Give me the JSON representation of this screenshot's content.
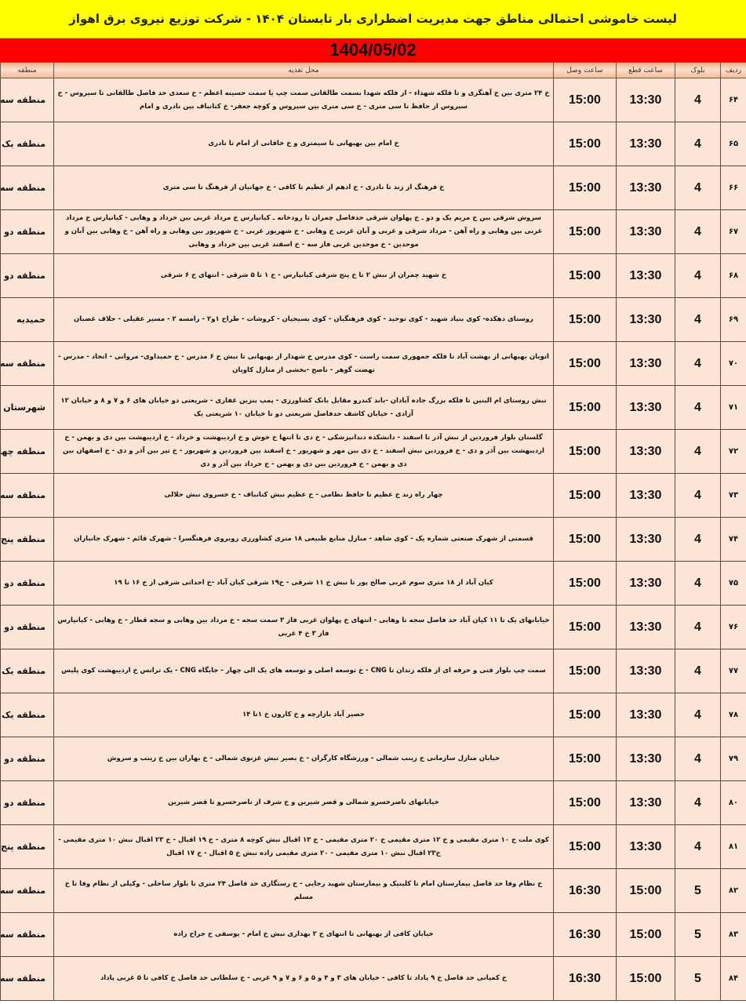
{
  "header": {
    "title": "لیست خاموشی احتمالی مناطق جهت مدیریت اضطراری بار تابستان ۱۴۰۴ - شرکت توزیع نیروی برق اهواز",
    "date": "1404/05/02"
  },
  "colors": {
    "title_bg": "#ffff00",
    "date_bg": "#ff0000",
    "row_bg": "#fce4d6"
  },
  "table": {
    "columns": {
      "radif": "ردیف",
      "block": "بلوک",
      "qat": "ساعت قطع",
      "wasl": "ساعت وصل",
      "addr": "محل تغذیه",
      "region": "منطقه"
    },
    "rows": [
      {
        "radif": "۶۴",
        "block": "4",
        "qat": "13:30",
        "wasl": "15:00",
        "region": "منطقه سه",
        "addr": "خ ۲۴ متری بین خ آهنگری و تا فلکه شهداء - از فلکه شهدا بسمت طالقانی سمت چپ  یا سمت حسینه اعظم - خ سعدی حد فاصل طالقانی تا سیروس - خ سیروس از حافظ تا سی متری - خ سی متری بین سیروس و کوچه جعفر- خ کتانباف بین نادری و امام"
      },
      {
        "radif": "۶۵",
        "block": "4",
        "qat": "13:30",
        "wasl": "15:00",
        "region": "منطقه یک",
        "addr": "خ امام بین بهبهانی تا سیمتری و خ خاقانی از امام تا نادری"
      },
      {
        "radif": "۶۶",
        "block": "4",
        "qat": "13:30",
        "wasl": "15:00",
        "region": "منطقه سه",
        "addr": "خ فرهنگ از زند تا نادری - خ ادهم از عظیم تا کافی - خ جهانیان از فرهنگ تا سی متری"
      },
      {
        "radif": "۶۷",
        "block": "4",
        "qat": "13:30",
        "wasl": "15:00",
        "region": "منطقه دو",
        "addr": "سروش شرقی بین خ مریم یک و دو  ـ خ پهلوان شرقی حدفاصل چمران تا رودخانه ـ کیانپارس خ مرداد غربی بین خرداد و وهابی -  کیانپارس خ مرداد غربی بین وهابی و راه آهن - مرداد شرقی و غربی و آبان غربی خ وهابی - خ شهریور غربی - خ شهریور بین وهابی و راه آهن - خ وهابی بین آبان و موحدین - خ موحدین غربی فاز سه - خ اسفند غربی بین خرداد و وهابی"
      },
      {
        "radif": "۶۸",
        "block": "4",
        "qat": "13:30",
        "wasl": "15:00",
        "region": "منطقه دو",
        "addr": "خ شهید چمران از نبش ۲  تا خ پنج شرقی کیانپارس - خ ۱ تا ۵ شرقی - انتهای خ ۶ شرقی"
      },
      {
        "radif": "۶۹",
        "block": "4",
        "qat": "13:30",
        "wasl": "15:00",
        "region": "حمیدیه",
        "addr": "روستای دهکده- کوی بنیاد شهید - کوی توحید - کوی فرهنگیان - کوی بسیجیان - کروشات - طراح ۱و۲ - رامسه ۲ - مسیر عقیلی - حلاف غضبان"
      },
      {
        "radif": "۷۰",
        "block": "4",
        "qat": "13:30",
        "wasl": "15:00",
        "region": "منطقه سه",
        "addr": "اتوبان بهبهانی از بهشت آباد تا فلکه جمهوری سمت راست - کوی مدرس خ شهدار از بهبهانی تا نبش خ ۶ مدرس - خ حمیداوی- مروانی - اتحاد - مدرس - نهضت گوهر - ناصح -بخشی از منازل کاویان"
      },
      {
        "radif": "۷۱",
        "block": "4",
        "qat": "13:30",
        "wasl": "15:00",
        "region": "شهرستان کارون",
        "addr": "نبش روستای ام البنین تا فلکه بزرگ جاده آبادان -باند کندرو مقابل بانک کشاورزی - پمپ بنزین غفاری - شریعتی دو خیابان های ۶ و ۷ و ۸ و خیابان ۱۲ آزادی - خیابان کاشف  حدفاصل شریعتی دو تا خیابان ۱۰ شریعتی یک"
      },
      {
        "radif": "۷۲",
        "block": "4",
        "qat": "13:30",
        "wasl": "15:00",
        "region": "منطقه چهار",
        "addr": "گلستان بلوار فروردین از نبش آذر تا اسفند - دانشکده دندانپزشکی - خ دی تا انتها خ خوش و خ اردیبهشت و خرداد - خ اردیبهشت بین دی و بهمن - خ اردیبهشت بین آذر و دی - خ فروردین نبش اسفند - خ دی بین مهر و شهریور - خ اسفند بین فروردین و شهریور - خ تیر بین آذر و دی - خ اصفهان بین دی و بهمن - خ فروردین بین دی و بهمن - خ خرداد بین آذر و دی"
      },
      {
        "radif": "۷۳",
        "block": "4",
        "qat": "13:30",
        "wasl": "15:00",
        "region": "منطقه سه",
        "addr": "چهار راه زند خ عظیم تا حافظ نظامی  - خ عظیم نبش کتانباف - خ خسروی نبش حلالی"
      },
      {
        "radif": "۷۴",
        "block": "4",
        "qat": "13:30",
        "wasl": "15:00",
        "region": "منطقه پنج",
        "addr": "قسمتی از شهرک صنعتی شماره یک - کوی شاهد - منازل منابع طبیعی ۱۸ متری کشاورزی روبروی فرهنگسرا - شهرک قائم - شهرک جانبازان"
      },
      {
        "radif": "۷۵",
        "block": "4",
        "qat": "13:30",
        "wasl": "15:00",
        "region": "منطقه دو",
        "addr": "کیان آباد از ۱۸ متری سوم غربی صالح پور تا نبش خ ۱۱ شرقی - خ۱۹ شرقی کیان آباد -خ احداثی شرقی از خ ۱۶ تا ۱۹"
      },
      {
        "radif": "۷۶",
        "block": "4",
        "qat": "13:30",
        "wasl": "15:00",
        "region": "منطقه دو",
        "addr": "خیابانهای یک تا ۱۱ کیان آباد حد فاصل سجه تا وهابی - انتهای خ پهلوان غربی فاز ۳ سمت سجه - خ مرداد بین وهابی و سجه قطار - خ وهابی - کیانپارس فاز ۳ خ ۴ غربی"
      },
      {
        "radif": "۷۷",
        "block": "4",
        "qat": "13:30",
        "wasl": "15:00",
        "region": "منطقه یک",
        "addr": "سمت چپ بلوار فنی و حرفه ای از فلکه زندان تا CNG - خ توسعه اصلی و توسعه های یک الی چهار - جایگاه CNG - یک ترانس خ اردیبهشت کوی پلیس"
      },
      {
        "radif": "۷۸",
        "block": "4",
        "qat": "13:30",
        "wasl": "15:00",
        "region": "منطقه یک",
        "addr": "حصیر آباد بازارچه و خ کارون خ ۱تا ۱۴"
      },
      {
        "radif": "۷۹",
        "block": "4",
        "qat": "13:30",
        "wasl": "15:00",
        "region": "منطقه دو",
        "addr": "خیابان منازل سازمانی خ زینب شمالی - ورزشگاه کارگران - خ بصیر نبش غزنوی شمالی - خ بهاران بین خ زینب و سروش"
      },
      {
        "radif": "۸۰",
        "block": "4",
        "qat": "13:30",
        "wasl": "15:00",
        "region": "منطقه دو",
        "addr": "خیابانهای ناصرخسرو شمالی و قصر شیرین و خ شرف از ناصرخسرو تا قصر شیرین"
      },
      {
        "radif": "۸۱",
        "block": "4",
        "qat": "13:30",
        "wasl": "15:00",
        "region": "منطقه پنج",
        "addr": "کوی ملت خ ۱۰ متری مقیمی و خ ۱۲ متری مقیمی خ ۲۰ متری مقیمی - خ ۱۳ اقبال نبش کوچه ۸ متری - خ ۱۹ اقبال - خ ۲۳ اقبال نبش ۱۰ متری مقیمی - خ۲۳ اقبال نبش ۱۰ متری مقیمی - ۲۰ متری مقیمی زاده نبش خ ۵ اقبال - خ ۱۷ اقبال"
      },
      {
        "radif": "۸۲",
        "block": "5",
        "qat": "15:00",
        "wasl": "16:30",
        "region": "منطقه سه",
        "addr": "خ نظام وفا حد فاصل بیمارستان امام تا کلینیک و بیمارستان شهید رجایی - خ رستگاری حد فاصل ۲۴ متری تا بلوار ساحلی - وکیلی از نظام وفا تا خ مسلم"
      },
      {
        "radif": "۸۳",
        "block": "5",
        "qat": "15:00",
        "wasl": "16:30",
        "region": "منطقه سه",
        "addr": "خیابان کافی از بهبهانی تا انتهای خ ۲ بهداری نبش خ امام - یوسفی خ جراح زاده"
      },
      {
        "radif": "۸۴",
        "block": "5",
        "qat": "15:00",
        "wasl": "16:30",
        "region": "منطقه سه",
        "addr": "خ کمپانی حد فاصل خ ۹ پاداد تا کافی - خیابان های ۳ و ۴ و ۵ و ۶ و ۷ و ۹ غربی - خ سلطانی حد فاصل خ کافی تا ۵ غربی پاداد"
      }
    ]
  }
}
